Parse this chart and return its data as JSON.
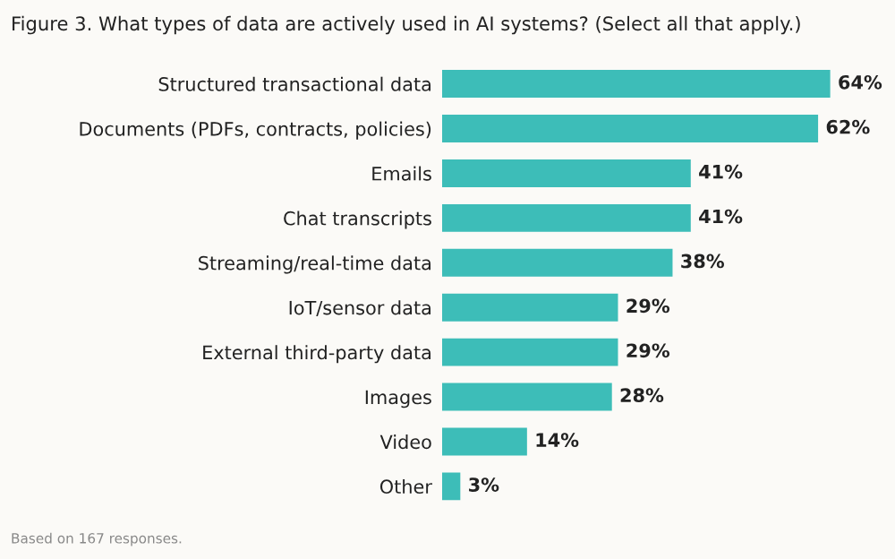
{
  "chart_data": {
    "type": "bar",
    "orientation": "horizontal",
    "title": "Figure 3. What types of data are actively used in AI systems? (Select all that apply.)",
    "categories": [
      "Structured transactional data",
      "Documents (PDFs, contracts, policies)",
      "Emails",
      "Chat transcripts",
      "Streaming/real-time data",
      "IoT/sensor data",
      "External third-party data",
      "Images",
      "Video",
      "Other"
    ],
    "values": [
      64,
      62,
      41,
      41,
      38,
      29,
      29,
      28,
      14,
      3
    ],
    "value_labels": [
      "64%",
      "62%",
      "41%",
      "41%",
      "38%",
      "29%",
      "29%",
      "28%",
      "14%",
      "3%"
    ],
    "color": "#3dbdb8",
    "annotations": [
      "Based on 167 responses."
    ]
  }
}
